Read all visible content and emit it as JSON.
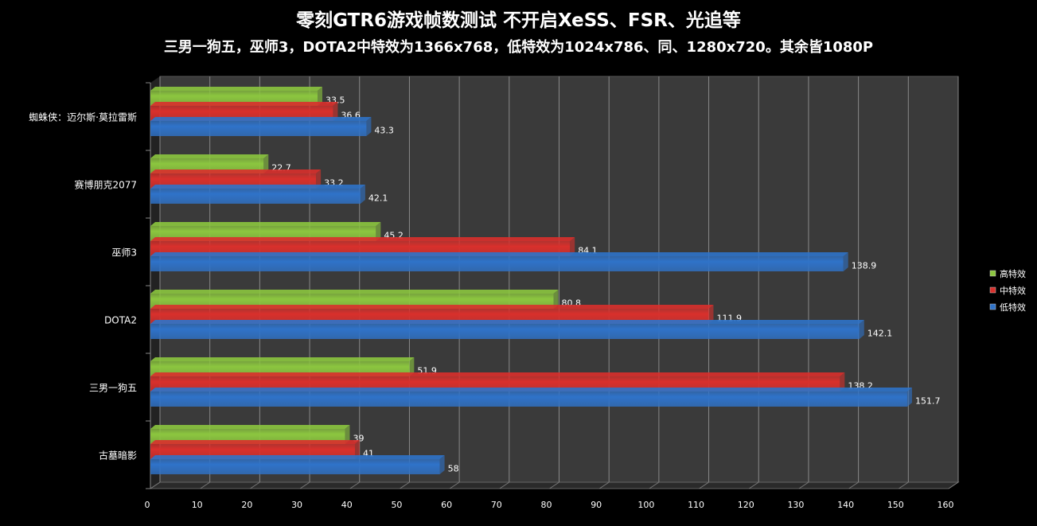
{
  "chart_data": {
    "type": "bar",
    "orientation": "horizontal",
    "title": "零刻GTR6游戏帧数测试    不开启XeSS、FSR、光追等",
    "subtitle": "三男一狗五，巫师3，DOTA2中特效为1366x768，低特效为1024x786、同、1280x720。其余皆1080P",
    "categories": [
      "蜘蛛侠：迈尔斯·莫拉雷斯",
      "赛博朋克2077",
      "巫师3",
      "DOTA2",
      "三男一狗五",
      "古墓暗影"
    ],
    "series": [
      {
        "name": "高特效",
        "color": "#8cc63f",
        "values": [
          33.5,
          22.7,
          45.2,
          80.8,
          51.9,
          39
        ]
      },
      {
        "name": "中特效",
        "color": "#d9302c",
        "values": [
          36.6,
          33.2,
          84.1,
          111.9,
          138.2,
          41
        ]
      },
      {
        "name": "低特效",
        "color": "#2f73c9",
        "values": [
          43.3,
          42.1,
          138.9,
          142.1,
          151.7,
          58
        ]
      }
    ],
    "xlim": [
      0,
      160
    ],
    "xticks": [
      0,
      10,
      20,
      30,
      40,
      50,
      60,
      70,
      80,
      90,
      100,
      110,
      120,
      130,
      140,
      150,
      160
    ],
    "grid": true,
    "legend": "right",
    "plot_background": "#3a3a3a"
  }
}
